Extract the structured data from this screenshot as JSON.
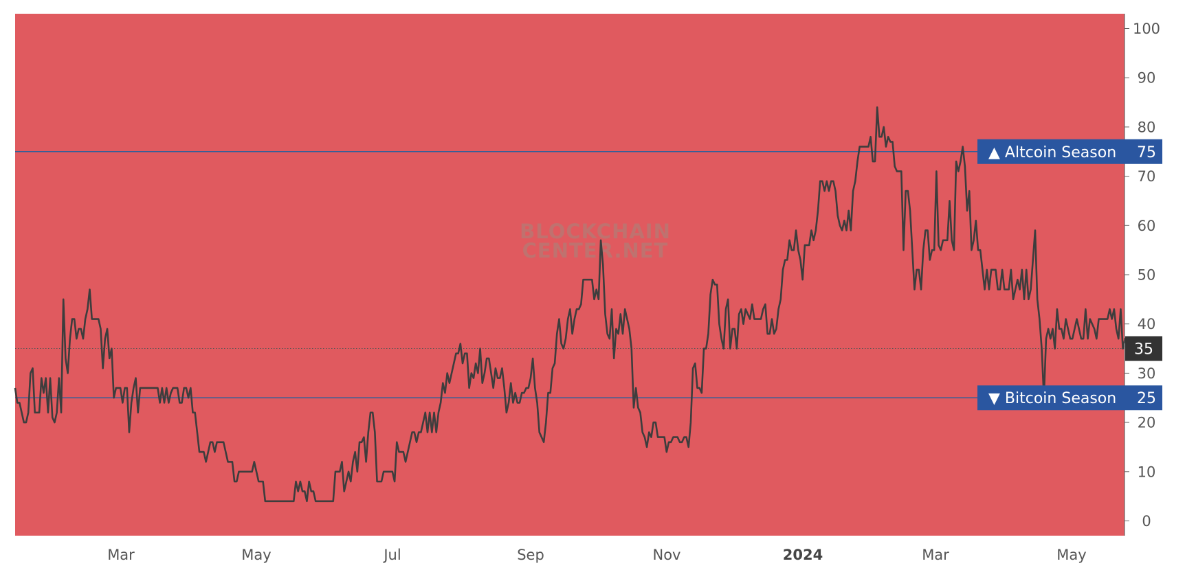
{
  "chart_data": {
    "type": "line",
    "title": "",
    "xlabel": "",
    "ylabel": "",
    "x_tick_labels": [
      {
        "label": "Mar",
        "bold": false
      },
      {
        "label": "May",
        "bold": false
      },
      {
        "label": "Jul",
        "bold": false
      },
      {
        "label": "Sep",
        "bold": false
      },
      {
        "label": "Nov",
        "bold": false
      },
      {
        "label": "2024",
        "bold": true
      },
      {
        "label": "Mar",
        "bold": false
      },
      {
        "label": "May",
        "bold": false
      }
    ],
    "y_ticks": [
      0,
      10,
      20,
      30,
      40,
      50,
      60,
      70,
      80,
      90,
      100
    ],
    "ylim": [
      -3,
      103
    ],
    "watermark": [
      "BLOCKCHAIN",
      "CENTER.NET"
    ],
    "thresholds": [
      {
        "value": 75,
        "label": "▲ Altcoin Season",
        "value_label": "75"
      },
      {
        "value": 25,
        "label": "▼ Bitcoin Season",
        "value_label": "25"
      }
    ],
    "current": {
      "value": 35,
      "label": "35"
    },
    "background_gradient": [
      {
        "value": -3,
        "color": "#e05a5f"
      },
      {
        "value": 3,
        "color": "#e05a5f"
      },
      {
        "value": 14,
        "color": "#f7a27f"
      },
      {
        "value": 22,
        "color": "#fccf9a"
      },
      {
        "value": 32,
        "color": "#fdf2c4"
      },
      {
        "value": 38,
        "color": "#d8ebbf"
      },
      {
        "value": 45,
        "color": "#a9d4c4"
      },
      {
        "value": 50,
        "color": "#a4c8d6"
      },
      {
        "value": 56,
        "color": "#b4dac2"
      },
      {
        "value": 64,
        "color": "#e4f3c2"
      },
      {
        "value": 73,
        "color": "#fdfec9"
      },
      {
        "value": 82,
        "color": "#fcd8a0"
      },
      {
        "value": 90,
        "color": "#f7a87f"
      },
      {
        "value": 97,
        "color": "#e05a5f"
      },
      {
        "value": 103,
        "color": "#e05a5f"
      }
    ],
    "colors": {
      "line": "#3d3d3d",
      "threshold_line": "#2f5f9a",
      "label_bg": "#2a56a0",
      "current_bg": "#333333",
      "axis_text": "#555555"
    },
    "series": [
      {
        "values": [
          27,
          24,
          24,
          22,
          20,
          20,
          22,
          30,
          31,
          22,
          22,
          22,
          29,
          26,
          29,
          22,
          29,
          21,
          20,
          22,
          29,
          22,
          45,
          33,
          30,
          37,
          41,
          41,
          37,
          39,
          39,
          37,
          41,
          43,
          47,
          41,
          41,
          41,
          41,
          39,
          31,
          37,
          39,
          33,
          35,
          25,
          27,
          27,
          27,
          24,
          27,
          27,
          18,
          24,
          27,
          29,
          22,
          27,
          27,
          27,
          27,
          27,
          27,
          27,
          27,
          27,
          24,
          27,
          24,
          27,
          24,
          26,
          27,
          27,
          27,
          24,
          24,
          27,
          27,
          25,
          27,
          22,
          22,
          18,
          14,
          14,
          14,
          12,
          14,
          16,
          16,
          14,
          16,
          16,
          16,
          16,
          14,
          12,
          12,
          12,
          8,
          8,
          10,
          10,
          10,
          10,
          10,
          10,
          10,
          12,
          10,
          8,
          8,
          8,
          4,
          4,
          4,
          4,
          4,
          4,
          4,
          4,
          4,
          4,
          4,
          4,
          4,
          4,
          8,
          6,
          8,
          6,
          6,
          4,
          8,
          6,
          6,
          4,
          4,
          4,
          4,
          4,
          4,
          4,
          4,
          4,
          10,
          10,
          10,
          12,
          6,
          8,
          10,
          8,
          12,
          14,
          10,
          16,
          16,
          17,
          12,
          18,
          22,
          22,
          18,
          8,
          8,
          8,
          10,
          10,
          10,
          10,
          10,
          8,
          16,
          14,
          14,
          14,
          12,
          14,
          16,
          18,
          18,
          16,
          18,
          18,
          20,
          22,
          18,
          22,
          18,
          22,
          18,
          22,
          24,
          28,
          26,
          30,
          28,
          30,
          32,
          34,
          34,
          36,
          32,
          34,
          34,
          27,
          30,
          29,
          32,
          30,
          35,
          28,
          30,
          33,
          33,
          30,
          27,
          31,
          29,
          29,
          31,
          27,
          22,
          24,
          28,
          24,
          26,
          24,
          24,
          26,
          26,
          27,
          27,
          29,
          33,
          27,
          24,
          18,
          17,
          16,
          20,
          26,
          26,
          31,
          32,
          38,
          41,
          36,
          35,
          37,
          41,
          43,
          38,
          41,
          43,
          43,
          44,
          49,
          49,
          49,
          49,
          49,
          45,
          47,
          45,
          57,
          52,
          42,
          38,
          37,
          43,
          33,
          39,
          38,
          42,
          38,
          43,
          41,
          39,
          35,
          23,
          27,
          23,
          22,
          18,
          17,
          15,
          18,
          17,
          20,
          20,
          17,
          17,
          17,
          17,
          14,
          16,
          16,
          17,
          17,
          17,
          16,
          16,
          17,
          17,
          15,
          20,
          31,
          32,
          27,
          27,
          26,
          35,
          35,
          38,
          46,
          49,
          48,
          48,
          40,
          37,
          35,
          43,
          45,
          35,
          39,
          39,
          35,
          42,
          43,
          40,
          43,
          42,
          41,
          44,
          41,
          41,
          41,
          41,
          43,
          44,
          38,
          38,
          41,
          38,
          39,
          43,
          45,
          51,
          53,
          53,
          57,
          55,
          55,
          59,
          55,
          53,
          49,
          56,
          56,
          56,
          59,
          57,
          59,
          63,
          69,
          69,
          67,
          69,
          67,
          69,
          69,
          67,
          62,
          60,
          59,
          61,
          59,
          63,
          59,
          67,
          69,
          73,
          76,
          76,
          76,
          76,
          76,
          78,
          73,
          73,
          84,
          78,
          78,
          80,
          76,
          78,
          77,
          77,
          72,
          71,
          71,
          71,
          55,
          67,
          67,
          63,
          55,
          47,
          51,
          51,
          47,
          55,
          59,
          59,
          53,
          55,
          55,
          71,
          56,
          55,
          57,
          57,
          57,
          65,
          57,
          55,
          73,
          71,
          73,
          76,
          72,
          63,
          67,
          55,
          57,
          61,
          55,
          55,
          51,
          47,
          51,
          47,
          51,
          51,
          51,
          47,
          47,
          51,
          47,
          47,
          47,
          51,
          45,
          47,
          49,
          47,
          51,
          45,
          51,
          45,
          47,
          53,
          59,
          45,
          41,
          35,
          25,
          37,
          39,
          37,
          39,
          35,
          43,
          39,
          39,
          37,
          41,
          39,
          37,
          37,
          39,
          41,
          39,
          37,
          37,
          43,
          37,
          41,
          40,
          39,
          37,
          41,
          41,
          41,
          41,
          41,
          43,
          41,
          43,
          39,
          37,
          43,
          35,
          37,
          35
        ]
      }
    ]
  }
}
